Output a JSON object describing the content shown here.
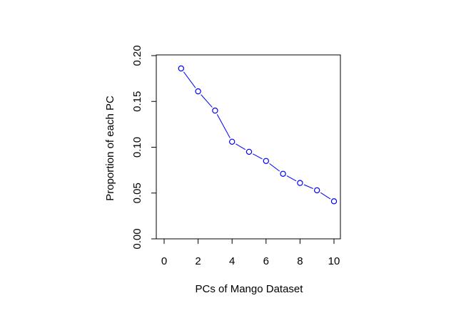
{
  "chart_data": {
    "type": "line",
    "xlabel": "PCs of Mango Dataset",
    "ylabel": "Proportion of each PC",
    "xlim": [
      0,
      10
    ],
    "ylim": [
      0,
      0.2
    ],
    "x_ticks": [
      "0",
      "2",
      "4",
      "6",
      "8",
      "10"
    ],
    "y_ticks": [
      "0.00",
      "0.05",
      "0.10",
      "0.15",
      "0.20"
    ],
    "series": [
      {
        "x": [
          1,
          2,
          3,
          4,
          5,
          6,
          7,
          8,
          9,
          10
        ],
        "values": [
          0.186,
          0.161,
          0.14,
          0.106,
          0.095,
          0.085,
          0.071,
          0.061,
          0.053,
          0.041
        ],
        "color": "#0000ff",
        "marker": "open-circle",
        "line_style": "broken-segments"
      }
    ]
  }
}
